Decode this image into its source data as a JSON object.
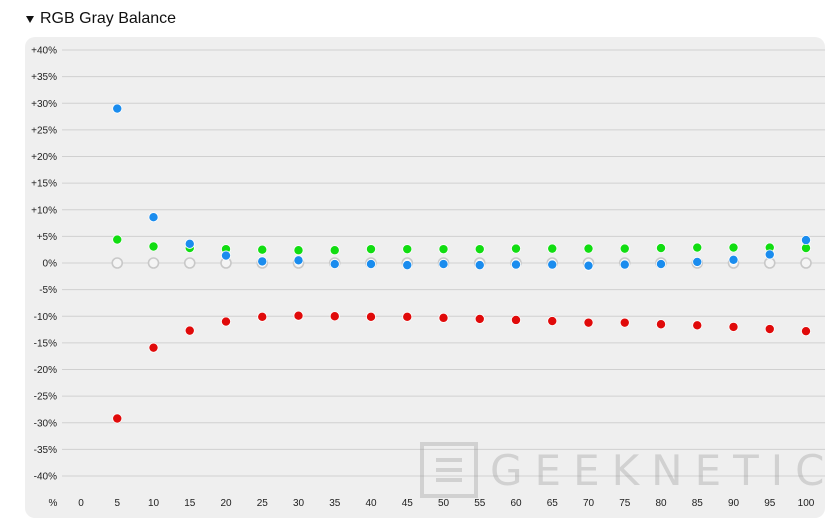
{
  "header": {
    "title": "RGB Gray Balance"
  },
  "watermark": {
    "text": "GEEKNETIC"
  },
  "chart_data": {
    "type": "scatter",
    "x_unit_label": "%",
    "x": [
      0,
      5,
      10,
      15,
      20,
      25,
      30,
      35,
      40,
      45,
      50,
      55,
      60,
      65,
      70,
      75,
      80,
      85,
      90,
      95,
      100
    ],
    "ylim": [
      -40,
      40
    ],
    "yticks": [
      40,
      35,
      30,
      25,
      20,
      15,
      10,
      5,
      0,
      -5,
      -10,
      -15,
      -20,
      -25,
      -30,
      -35,
      -40
    ],
    "ytick_labels": [
      "+40%",
      "+35%",
      "+30%",
      "+25%",
      "+20%",
      "+15%",
      "+10%",
      "+5%",
      "0%",
      "-5%",
      "-10%",
      "-15%",
      "-20%",
      "-25%",
      "-30%",
      "-35%",
      "-40%"
    ],
    "grid": true,
    "series": [
      {
        "key": "reference",
        "color": "#c8c8c8",
        "hollow": true,
        "x": [
          5,
          10,
          15,
          20,
          25,
          30,
          35,
          40,
          45,
          50,
          55,
          60,
          65,
          70,
          75,
          80,
          85,
          90,
          95,
          100
        ],
        "values": [
          0,
          0,
          0,
          0,
          0,
          0,
          0,
          0,
          0,
          0,
          0,
          0,
          0,
          0,
          0,
          0,
          0,
          0,
          0,
          0
        ]
      },
      {
        "key": "green",
        "color": "#11dd11",
        "x": [
          5,
          10,
          15,
          20,
          25,
          30,
          35,
          40,
          45,
          50,
          55,
          60,
          65,
          70,
          75,
          80,
          85,
          90,
          95,
          100
        ],
        "values": [
          4.4,
          3.1,
          2.8,
          2.6,
          2.5,
          2.4,
          2.4,
          2.6,
          2.6,
          2.6,
          2.6,
          2.7,
          2.7,
          2.7,
          2.7,
          2.8,
          2.9,
          2.9,
          2.9,
          2.8
        ]
      },
      {
        "key": "blue",
        "color": "#1a8cee",
        "x": [
          5,
          10,
          15,
          20,
          25,
          30,
          35,
          40,
          45,
          50,
          55,
          60,
          65,
          70,
          75,
          80,
          85,
          90,
          95,
          100
        ],
        "values": [
          29.0,
          8.6,
          3.6,
          1.4,
          0.3,
          0.5,
          -0.2,
          -0.2,
          -0.4,
          -0.2,
          -0.4,
          -0.3,
          -0.3,
          -0.5,
          -0.3,
          -0.2,
          0.2,
          0.6,
          1.6,
          4.3
        ]
      },
      {
        "key": "red",
        "color": "#e00a0a",
        "x": [
          5,
          10,
          15,
          20,
          25,
          30,
          35,
          40,
          45,
          50,
          55,
          60,
          65,
          70,
          75,
          80,
          85,
          90,
          95,
          100
        ],
        "values": [
          -29.2,
          -15.9,
          -12.7,
          -11.0,
          -10.1,
          -9.9,
          -10.0,
          -10.1,
          -10.1,
          -10.3,
          -10.5,
          -10.7,
          -10.9,
          -11.2,
          -11.2,
          -11.5,
          -11.7,
          -12.0,
          -12.4,
          -12.8
        ]
      }
    ]
  }
}
